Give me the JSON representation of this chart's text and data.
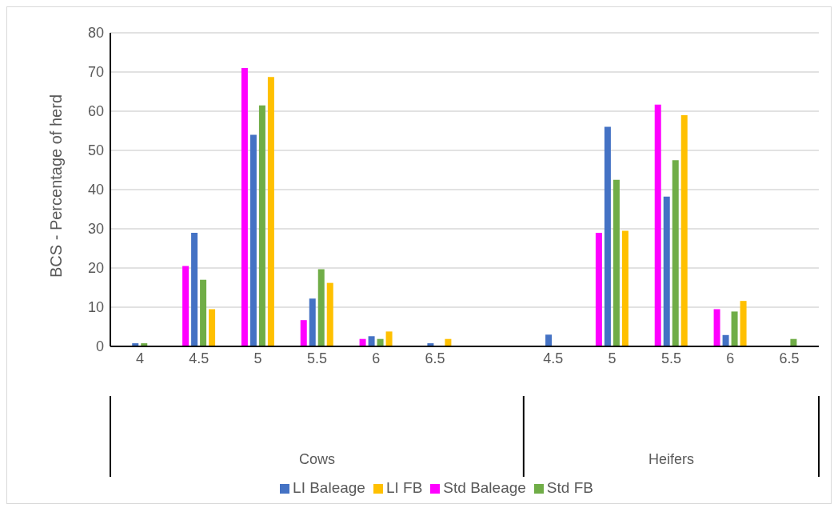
{
  "chart_data": {
    "type": "bar",
    "ylabel": "BCS - Percentage of herd",
    "categories": [
      "4",
      "4.5",
      "5",
      "5.5",
      "6",
      "6.5",
      null,
      "4.5",
      "5",
      "5.5",
      "6",
      "6.5"
    ],
    "series": [
      {
        "name": "Std Baleage",
        "color": "#ff00ff",
        "values": [
          0,
          20.5,
          71,
          6.7,
          1.9,
          0,
          null,
          0,
          29,
          61.7,
          9.5,
          0
        ]
      },
      {
        "name": "LI Baleage",
        "color": "#4472c4",
        "values": [
          0.8,
          29,
          54,
          12.2,
          2.6,
          0.8,
          null,
          3,
          56,
          38.2,
          2.9,
          0
        ]
      },
      {
        "name": "Std FB",
        "color": "#70ad47",
        "values": [
          0.8,
          17,
          61.5,
          19.7,
          1.9,
          0,
          null,
          0,
          42.5,
          47.5,
          8.9,
          1.9
        ]
      },
      {
        "name": "LI FB",
        "color": "#ffc000",
        "values": [
          0,
          9.5,
          68.7,
          16.2,
          3.8,
          1.9,
          null,
          0,
          29.5,
          59,
          11.6,
          0
        ]
      }
    ],
    "annotations": [
      "Cows",
      "Heifers"
    ],
    "ylim": [
      0,
      80
    ],
    "yticks": [
      0,
      10,
      20,
      30,
      40,
      50,
      60,
      70,
      80
    ],
    "grid": "y",
    "legend": "bottom"
  }
}
